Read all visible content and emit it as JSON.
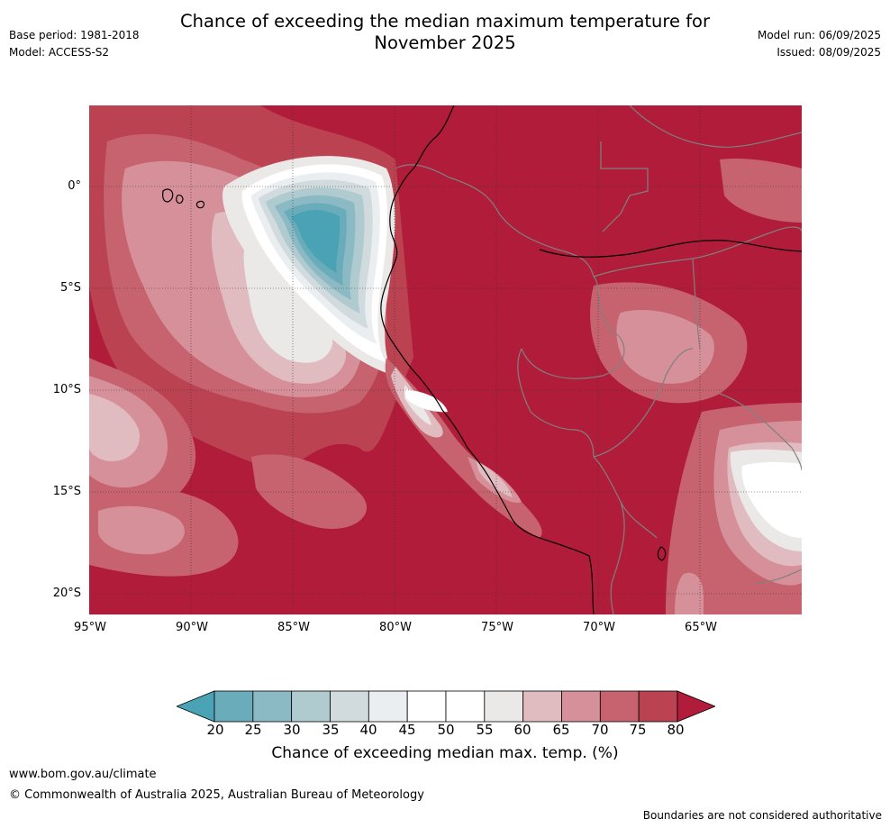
{
  "header": {
    "title_line1": "Chance of exceeding the median maximum temperature for",
    "title_line2": "November 2025",
    "base_period": "Base period: 1981-2018",
    "model": "Model: ACCESS-S2",
    "model_run": "Model run: 06/09/2025",
    "issued": "Issued: 08/09/2025"
  },
  "map": {
    "lat_labels": [
      "0°",
      "5°S",
      "10°S",
      "15°S",
      "20°S"
    ],
    "lon_labels": [
      "95°W",
      "90°W",
      "85°W",
      "80°W",
      "75°W",
      "70°W",
      "65°W"
    ],
    "colors": {
      "ocean_background": "#b01c3a",
      "country_border": "#808080",
      "coastline": "#000000"
    }
  },
  "colorbar": {
    "ticks": [
      "20",
      "25",
      "30",
      "35",
      "40",
      "45",
      "50",
      "55",
      "60",
      "65",
      "70",
      "75",
      "80"
    ],
    "label": "Chance of exceeding median max. temp. (%)",
    "colors": [
      "#4aa3b4",
      "#6aacba",
      "#8bbac5",
      "#afcbd0",
      "#d1dadd",
      "#ebeef0",
      "#ffffff",
      "#ffffff",
      "#ebe8e8",
      "#e0bcc1",
      "#d69099",
      "#c7636f",
      "#bb4351",
      "#b01c3a"
    ]
  },
  "footer": {
    "url": "www.bom.gov.au/climate",
    "copyright": "© Commonwealth of Australia 2025, Australian Bureau of Meteorology",
    "disclaimer": "Boundaries are not considered authoritative"
  }
}
